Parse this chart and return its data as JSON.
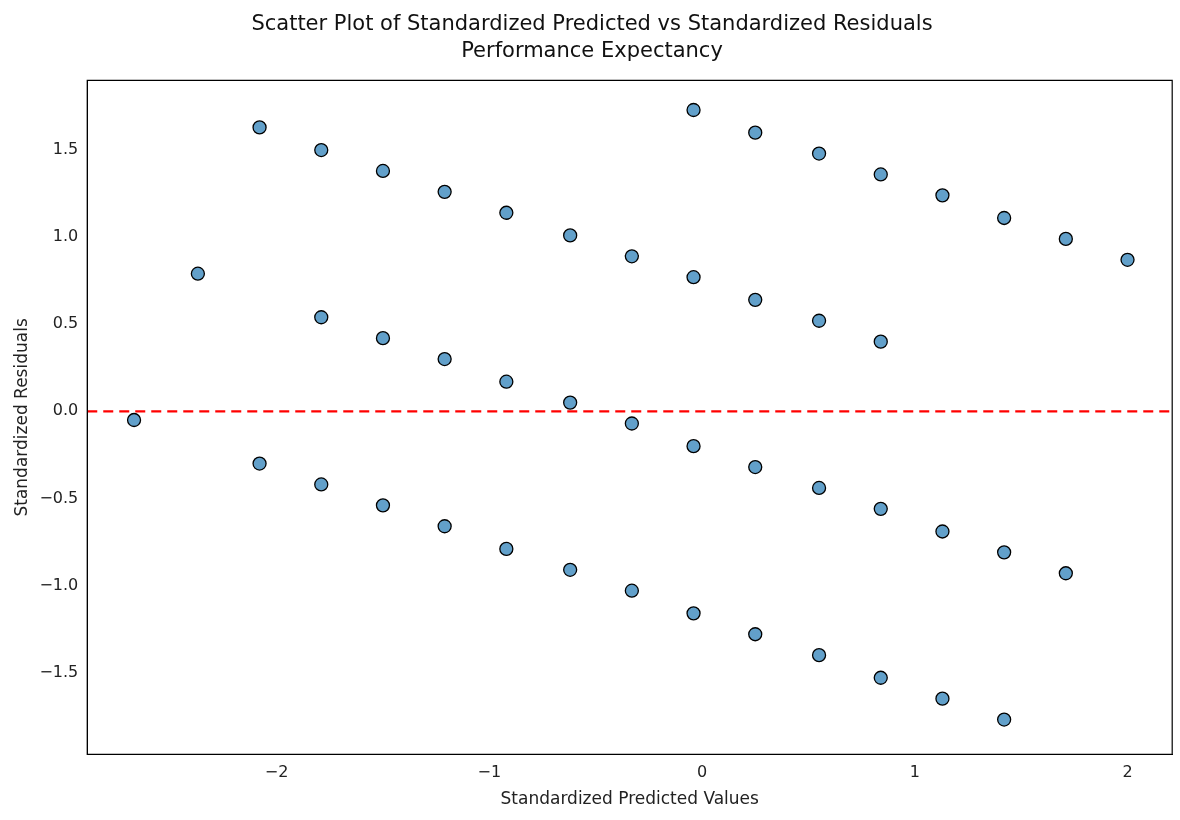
{
  "chart_data": {
    "type": "scatter",
    "title": "Scatter Plot of Standardized Predicted vs Standardized Residuals",
    "subtitle": "Performance Expectancy",
    "xlabel": "Standardized Predicted Values",
    "ylabel": "Standardized Residuals",
    "series": [
      {
        "color": "#1f77b4",
        "x": [
          -2.67,
          -2.37,
          -2.08,
          -2.08,
          -1.79,
          -1.79,
          -1.79,
          -1.5,
          -1.5,
          -1.5,
          -1.21,
          -1.21,
          -1.21,
          -0.92,
          -0.92,
          -0.92,
          -0.62,
          -0.62,
          -0.62,
          -0.33,
          -0.33,
          -0.33,
          -0.04,
          -0.04,
          -0.04,
          -0.04,
          0.25,
          0.25,
          0.25,
          0.25,
          0.55,
          0.55,
          0.55,
          0.55,
          0.84,
          0.84,
          0.84,
          0.84,
          1.13,
          1.13,
          1.13,
          1.42,
          1.42,
          1.42,
          1.71,
          1.71,
          2.0
        ],
        "values": [
          -0.05,
          0.79,
          1.63,
          -0.3,
          1.5,
          0.54,
          -0.42,
          1.38,
          0.42,
          -0.54,
          1.26,
          0.3,
          -0.66,
          1.14,
          0.17,
          -0.79,
          1.01,
          0.05,
          -0.91,
          0.89,
          -0.07,
          -1.03,
          1.73,
          0.77,
          -0.2,
          -1.16,
          1.6,
          0.64,
          -0.32,
          -1.28,
          1.48,
          0.52,
          -0.44,
          -1.4,
          1.36,
          0.4,
          -0.56,
          -1.53,
          1.24,
          -0.69,
          -1.65,
          1.11,
          -0.81,
          -1.77,
          0.99,
          -0.93,
          0.87
        ]
      }
    ],
    "xlim": [
      -2.89,
      2.21
    ],
    "ylim": [
      -1.97,
      1.9
    ],
    "xticks": [
      {
        "value": -2,
        "label": "−2"
      },
      {
        "value": -1,
        "label": "−1"
      },
      0,
      1,
      2
    ],
    "yticks": [
      {
        "value": -1.5,
        "label": "−1.5"
      },
      {
        "value": -1,
        "label": "−1.0"
      },
      {
        "value": -0.5,
        "label": "−0.5"
      },
      {
        "value": 0,
        "label": "0.0"
      },
      {
        "value": 0.5,
        "label": "0.5"
      },
      {
        "value": 1,
        "label": "1.0"
      },
      {
        "value": 1.5,
        "label": "1.5"
      }
    ],
    "ref_lines": [
      {
        "axis": "y",
        "value": 0,
        "color": "#ff0000",
        "line_style": "dashed"
      }
    ],
    "marker": "circle",
    "grid": false,
    "legend": false
  }
}
